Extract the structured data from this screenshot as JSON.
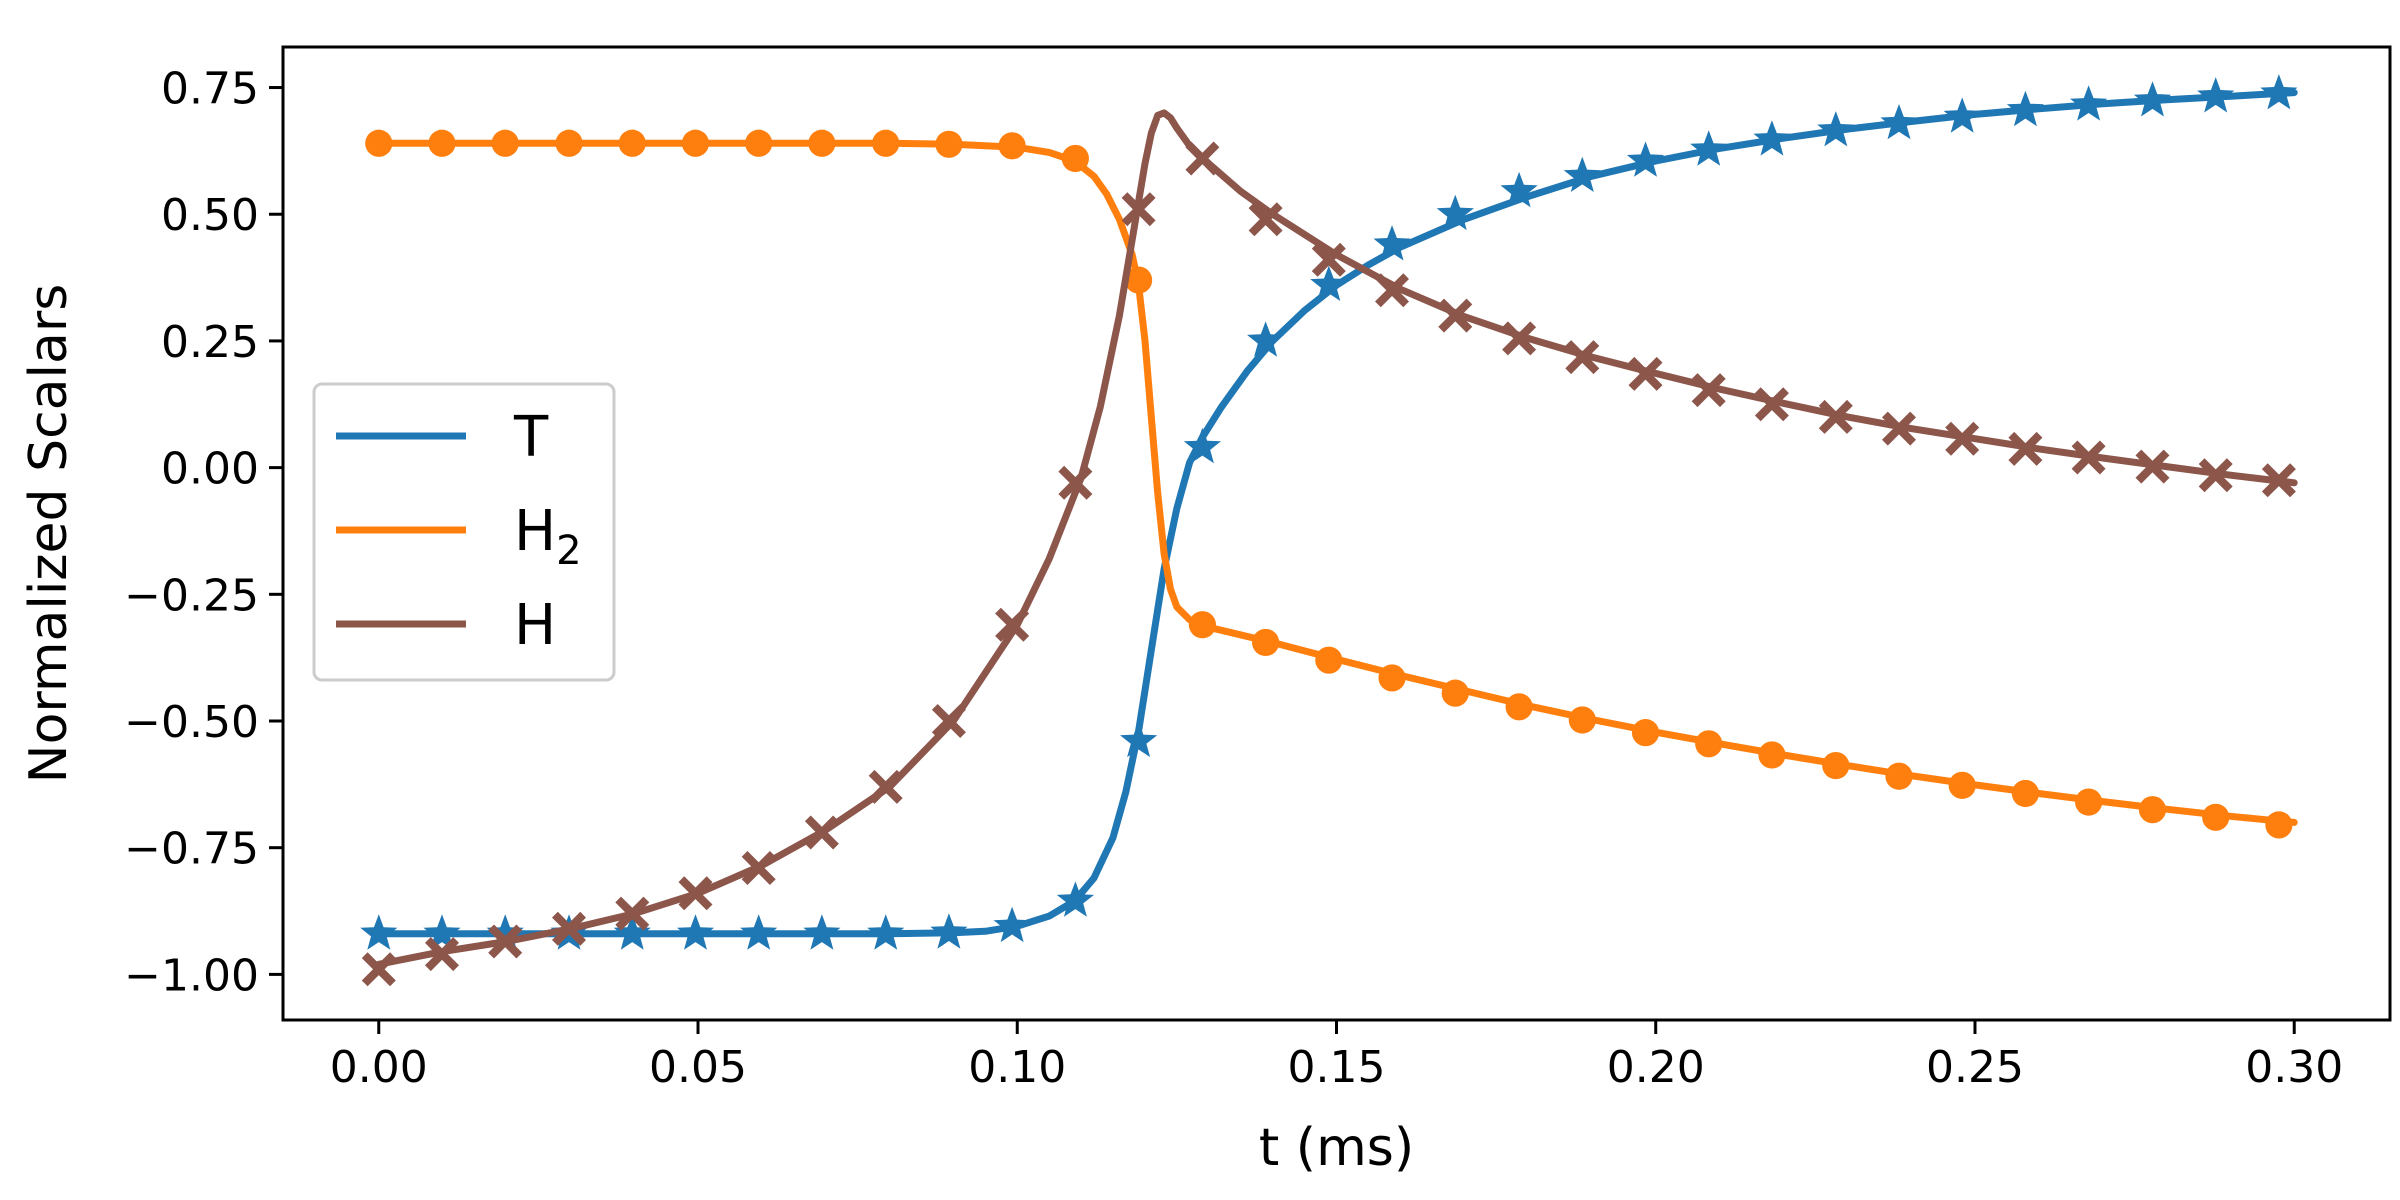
{
  "chart_data": {
    "type": "line",
    "title": "",
    "xlabel": "t (ms)",
    "ylabel": "Normalized Scalars",
    "xlim": [
      -0.015,
      0.315
    ],
    "ylim": [
      -1.09,
      0.83
    ],
    "xticks": [
      0.0,
      0.05,
      0.1,
      0.15,
      0.2,
      0.25,
      0.3
    ],
    "xtick_labels": [
      "0.00",
      "0.05",
      "0.10",
      "0.15",
      "0.20",
      "0.25",
      "0.30"
    ],
    "yticks": [
      0.75,
      0.5,
      0.25,
      0.0,
      -0.25,
      -0.5,
      -0.75,
      -1.0
    ],
    "ytick_labels": [
      "0.75",
      "0.50",
      "0.25",
      "0.00",
      "−0.25",
      "−0.50",
      "−0.75",
      "−1.00"
    ],
    "grid": false,
    "legend_position": "center-left",
    "series": [
      {
        "name": "T",
        "legend_main": "T",
        "legend_sub": "",
        "color": "#1f77b4",
        "marker": "star",
        "curve": {
          "x": [
            0.0,
            0.02,
            0.04,
            0.06,
            0.08,
            0.09,
            0.095,
            0.1,
            0.105,
            0.109,
            0.112,
            0.115,
            0.117,
            0.119,
            0.121,
            0.123,
            0.125,
            0.127,
            0.129,
            0.132,
            0.136,
            0.14,
            0.145,
            0.15,
            0.155,
            0.16,
            0.17,
            0.18,
            0.19,
            0.2,
            0.21,
            0.22,
            0.23,
            0.24,
            0.25,
            0.26,
            0.27,
            0.28,
            0.29,
            0.3
          ],
          "y": [
            -0.92,
            -0.92,
            -0.92,
            -0.92,
            -0.92,
            -0.918,
            -0.915,
            -0.905,
            -0.885,
            -0.855,
            -0.81,
            -0.73,
            -0.64,
            -0.52,
            -0.36,
            -0.2,
            -0.08,
            0.01,
            0.06,
            0.12,
            0.19,
            0.25,
            0.31,
            0.36,
            0.4,
            0.435,
            0.49,
            0.535,
            0.575,
            0.605,
            0.63,
            0.65,
            0.668,
            0.683,
            0.697,
            0.708,
            0.718,
            0.726,
            0.733,
            0.74
          ]
        },
        "markers": {
          "x": [
            0.0,
            0.0099,
            0.0198,
            0.0298,
            0.0397,
            0.0496,
            0.0595,
            0.0694,
            0.0794,
            0.0893,
            0.0992,
            0.1091,
            0.119,
            0.129,
            0.1389,
            0.1488,
            0.1587,
            0.1686,
            0.1786,
            0.1885,
            0.1984,
            0.2083,
            0.2182,
            0.2282,
            0.2381,
            0.248,
            0.2579,
            0.2678,
            0.2778,
            0.2877,
            0.2976
          ],
          "y": [
            -0.92,
            -0.92,
            -0.92,
            -0.92,
            -0.92,
            -0.92,
            -0.92,
            -0.92,
            -0.92,
            -0.918,
            -0.905,
            -0.855,
            -0.54,
            0.04,
            0.25,
            0.36,
            0.44,
            0.5,
            0.545,
            0.575,
            0.605,
            0.627,
            0.647,
            0.665,
            0.679,
            0.692,
            0.705,
            0.716,
            0.724,
            0.732,
            0.738
          ]
        }
      },
      {
        "name": "H2",
        "legend_main": "H",
        "legend_sub": "2",
        "color": "#ff7f0e",
        "marker": "circle",
        "curve": {
          "x": [
            0.0,
            0.02,
            0.04,
            0.06,
            0.08,
            0.09,
            0.1,
            0.105,
            0.109,
            0.112,
            0.114,
            0.116,
            0.118,
            0.119,
            0.12,
            0.121,
            0.122,
            0.123,
            0.124,
            0.125,
            0.127,
            0.13,
            0.14,
            0.15,
            0.16,
            0.17,
            0.18,
            0.19,
            0.2,
            0.21,
            0.22,
            0.23,
            0.24,
            0.25,
            0.26,
            0.27,
            0.28,
            0.29,
            0.3
          ],
          "y": [
            0.64,
            0.64,
            0.64,
            0.64,
            0.64,
            0.638,
            0.632,
            0.622,
            0.605,
            0.575,
            0.54,
            0.49,
            0.42,
            0.36,
            0.25,
            0.1,
            -0.05,
            -0.17,
            -0.24,
            -0.275,
            -0.3,
            -0.315,
            -0.345,
            -0.378,
            -0.41,
            -0.44,
            -0.47,
            -0.497,
            -0.522,
            -0.545,
            -0.567,
            -0.588,
            -0.608,
            -0.626,
            -0.643,
            -0.659,
            -0.674,
            -0.688,
            -0.7
          ]
        },
        "markers": {
          "x": [
            0.0,
            0.0099,
            0.0198,
            0.0298,
            0.0397,
            0.0496,
            0.0595,
            0.0694,
            0.0794,
            0.0893,
            0.0992,
            0.1091,
            0.119,
            0.129,
            0.1389,
            0.1488,
            0.1587,
            0.1686,
            0.1786,
            0.1885,
            0.1984,
            0.2083,
            0.2182,
            0.2282,
            0.2381,
            0.248,
            0.2579,
            0.2678,
            0.2778,
            0.2877,
            0.2976
          ],
          "y": [
            0.64,
            0.64,
            0.64,
            0.64,
            0.64,
            0.64,
            0.64,
            0.64,
            0.64,
            0.638,
            0.635,
            0.61,
            0.37,
            -0.31,
            -0.345,
            -0.38,
            -0.415,
            -0.445,
            -0.472,
            -0.498,
            -0.523,
            -0.545,
            -0.567,
            -0.588,
            -0.609,
            -0.627,
            -0.643,
            -0.66,
            -0.675,
            -0.69,
            -0.705
          ]
        }
      },
      {
        "name": "H",
        "legend_main": "H",
        "legend_sub": "",
        "color": "#8c564b",
        "marker": "x",
        "curve": {
          "x": [
            0.0,
            0.01,
            0.02,
            0.03,
            0.04,
            0.05,
            0.06,
            0.07,
            0.08,
            0.09,
            0.1,
            0.105,
            0.11,
            0.113,
            0.116,
            0.118,
            0.12,
            0.121,
            0.122,
            0.123,
            0.124,
            0.125,
            0.127,
            0.13,
            0.135,
            0.14,
            0.15,
            0.16,
            0.17,
            0.18,
            0.19,
            0.2,
            0.21,
            0.22,
            0.23,
            0.24,
            0.25,
            0.26,
            0.27,
            0.28,
            0.29,
            0.3
          ],
          "y": [
            -0.98,
            -0.955,
            -0.935,
            -0.91,
            -0.88,
            -0.84,
            -0.785,
            -0.715,
            -0.63,
            -0.5,
            -0.31,
            -0.18,
            -0.02,
            0.12,
            0.3,
            0.45,
            0.6,
            0.66,
            0.695,
            0.7,
            0.69,
            0.67,
            0.635,
            0.6,
            0.545,
            0.5,
            0.42,
            0.352,
            0.298,
            0.255,
            0.218,
            0.186,
            0.155,
            0.127,
            0.1,
            0.077,
            0.057,
            0.037,
            0.019,
            0.002,
            -0.015,
            -0.03
          ]
        },
        "markers": {
          "x": [
            0.0,
            0.0099,
            0.0198,
            0.0298,
            0.0397,
            0.0496,
            0.0595,
            0.0694,
            0.0794,
            0.0893,
            0.0992,
            0.1091,
            0.119,
            0.129,
            0.1389,
            0.1488,
            0.1587,
            0.1686,
            0.1786,
            0.1885,
            0.1984,
            0.2083,
            0.2182,
            0.2282,
            0.2381,
            0.248,
            0.2579,
            0.2678,
            0.2778,
            0.2877,
            0.2976
          ],
          "y": [
            -0.99,
            -0.96,
            -0.935,
            -0.91,
            -0.88,
            -0.84,
            -0.79,
            -0.72,
            -0.63,
            -0.5,
            -0.31,
            -0.03,
            0.51,
            0.61,
            0.49,
            0.41,
            0.35,
            0.3,
            0.255,
            0.218,
            0.185,
            0.153,
            0.125,
            0.1,
            0.077,
            0.057,
            0.037,
            0.02,
            0.002,
            -0.015,
            -0.025
          ]
        }
      }
    ]
  }
}
